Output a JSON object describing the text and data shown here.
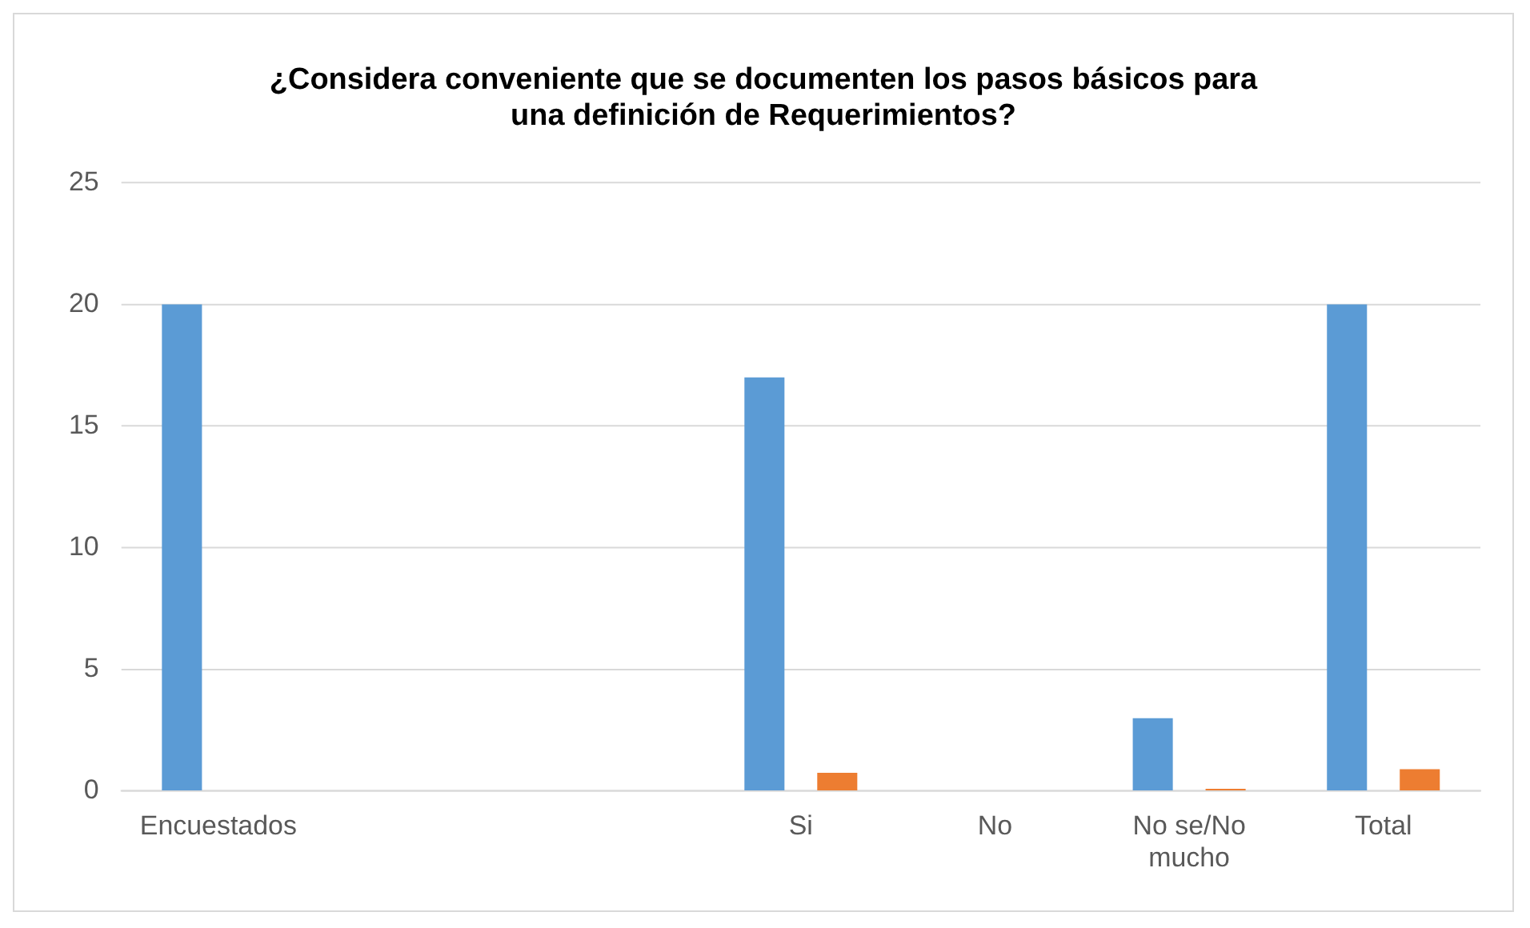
{
  "chart_data": {
    "type": "bar",
    "title": "¿Considera conveniente que se documenten los pasos básicos para una definición de Requerimientos?",
    "categories": [
      "Encuestados",
      null,
      null,
      "Si",
      "No",
      "No se/No mucho",
      "Total"
    ],
    "series": [
      {
        "color": "#5b9bd5",
        "values": [
          20,
          null,
          null,
          17,
          0,
          3,
          20
        ]
      },
      {
        "color": "#ed7d31",
        "values": [
          null,
          null,
          null,
          0.75,
          0,
          0.1,
          0.9
        ]
      }
    ],
    "ylim": [
      0,
      25
    ],
    "yticks": [
      0,
      5,
      10,
      15,
      20,
      25
    ],
    "grid": "y",
    "legend": false
  }
}
